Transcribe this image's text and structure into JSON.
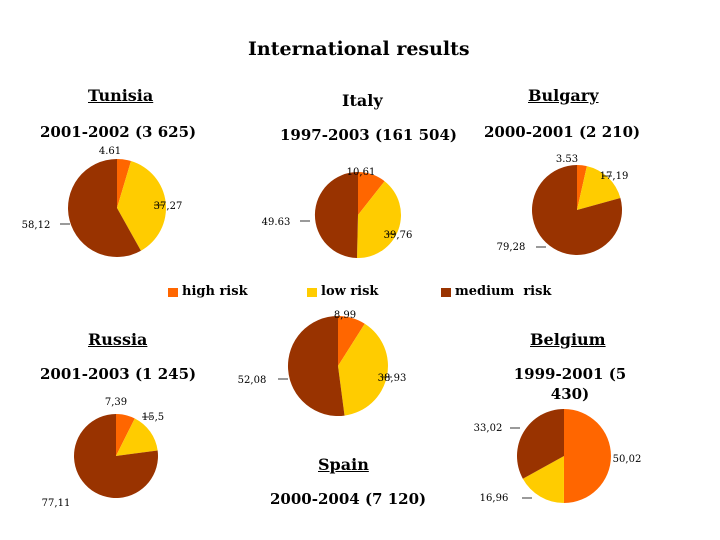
{
  "title": "International results",
  "legend": [
    {
      "label": "high risk",
      "color": "#ff6600"
    },
    {
      "label": "low risk",
      "color": "#ffcc00"
    },
    {
      "label": "medium  risk",
      "color": "#993300"
    }
  ],
  "chart_data": [
    {
      "type": "pie",
      "title": "Tunisia",
      "subtitle": "2001-2002 (3 625)",
      "categories": [
        "high risk",
        "low risk",
        "medium  risk"
      ],
      "values": [
        4.61,
        37.27,
        58.12
      ],
      "labels": [
        "4.61",
        "37,27",
        "58,12"
      ]
    },
    {
      "type": "pie",
      "title": "Italy",
      "subtitle": "1997-2003 (161 504)",
      "categories": [
        "high risk",
        "low risk",
        "medium  risk"
      ],
      "values": [
        10.61,
        39.76,
        49.63
      ],
      "labels": [
        "10,61",
        "39,76",
        "49.63"
      ]
    },
    {
      "type": "pie",
      "title": "Bulgary",
      "subtitle": "2000-2001 (2 210)",
      "categories": [
        "high risk",
        "low risk",
        "medium  risk"
      ],
      "values": [
        3.53,
        17.19,
        79.28
      ],
      "labels": [
        "3.53",
        "17,19",
        "79,28"
      ]
    },
    {
      "type": "pie",
      "title": "Russia",
      "subtitle": "2001-2003 (1 245)",
      "categories": [
        "high risk",
        "low risk",
        "medium  risk"
      ],
      "values": [
        7.39,
        15.5,
        77.11
      ],
      "labels": [
        "7,39",
        "15,5",
        "77,11"
      ]
    },
    {
      "type": "pie",
      "title": "Spain",
      "subtitle": "2000-2004 (7 120)",
      "categories": [
        "high risk",
        "low risk",
        "medium  risk"
      ],
      "values": [
        8.99,
        38.93,
        52.08
      ],
      "labels": [
        "8,99",
        "38,93",
        "52,08"
      ]
    },
    {
      "type": "pie",
      "title": "Belgium",
      "subtitle": "1999-2001 (5 430)",
      "categories": [
        "high risk",
        "low risk",
        "medium  risk"
      ],
      "values": [
        50.02,
        16.96,
        33.02
      ],
      "labels": [
        "50,02",
        "16,96",
        "33,02"
      ]
    }
  ]
}
